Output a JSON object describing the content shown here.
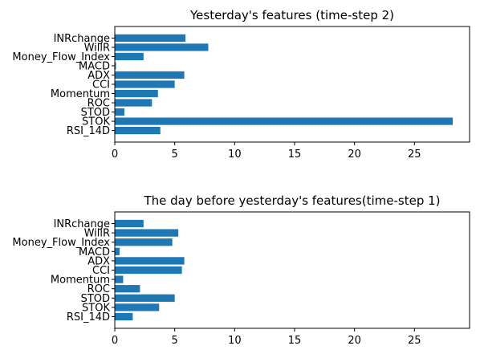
{
  "chart_data": [
    {
      "type": "bar",
      "orientation": "horizontal",
      "title": "Yesterday's features (time-step 2)",
      "xlabel": "",
      "ylabel": "",
      "categories": [
        "INRchange",
        "WillR",
        "Money_Flow_Index",
        "MACD",
        "ADX",
        "CCI",
        "Momentum",
        "ROC",
        "STOD",
        "STOK",
        "RSI_14D"
      ],
      "values": [
        5.9,
        7.8,
        2.4,
        0.1,
        5.8,
        5.0,
        3.6,
        3.1,
        0.8,
        28.2,
        3.8
      ],
      "xlim": [
        0,
        29.6
      ],
      "xticks": [
        0,
        5,
        10,
        15,
        20,
        25
      ],
      "xtick_labels": [
        "0",
        "5",
        "10",
        "15",
        "20",
        "25"
      ],
      "bar_color": "#1f77b4",
      "grid": false
    },
    {
      "type": "bar",
      "orientation": "horizontal",
      "title": "The day before yesterday's features(time-step 1)",
      "xlabel": "",
      "ylabel": "",
      "categories": [
        "INRchange",
        "WillR",
        "Money_Flow_Index",
        "MACD",
        "ADX",
        "CCI",
        "Momentum",
        "ROC",
        "STOD",
        "STOK",
        "RSI_14D"
      ],
      "values": [
        2.4,
        5.3,
        4.8,
        0.4,
        5.8,
        5.6,
        0.7,
        2.1,
        5.0,
        3.7,
        1.5
      ],
      "xlim": [
        0,
        29.6
      ],
      "xticks": [
        0,
        5,
        10,
        15,
        20,
        25
      ],
      "xtick_labels": [
        "0",
        "5",
        "10",
        "15",
        "20",
        "25"
      ],
      "bar_color": "#1f77b4",
      "grid": false
    }
  ]
}
